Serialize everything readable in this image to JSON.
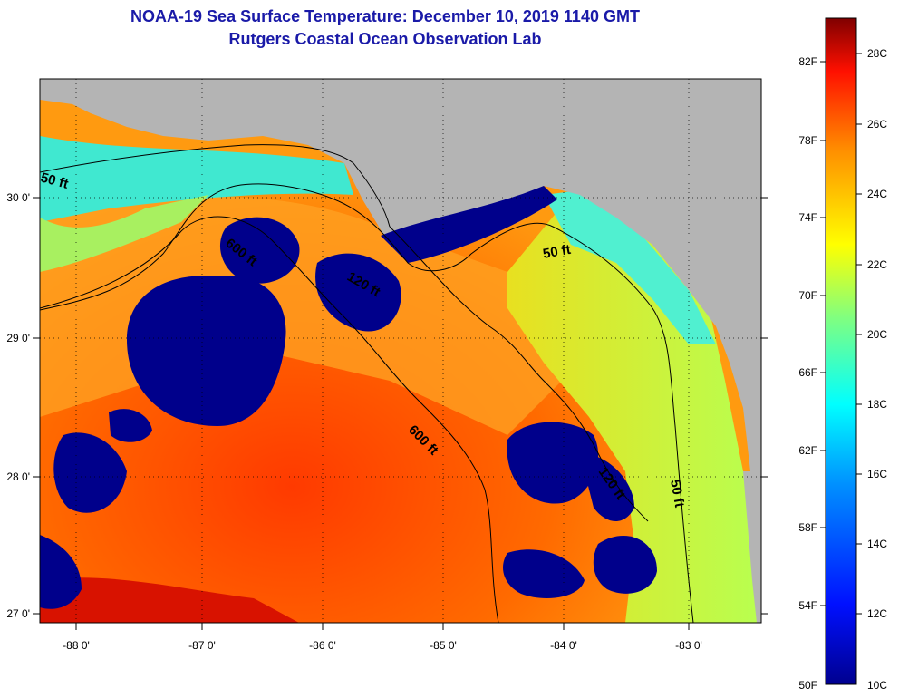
{
  "title": {
    "line1": "NOAA-19 Sea Surface Temperature:  December 10, 2019 1140 GMT",
    "line2": "Rutgers Coastal Ocean Observation Lab"
  },
  "map": {
    "lon_labels": [
      "-88 0'",
      "-87 0'",
      "-86 0'",
      "-85 0'",
      "-84 0'",
      "-83 0'"
    ],
    "lat_labels": [
      "30 0'",
      "29 0'",
      "28 0'",
      "27 0'"
    ],
    "contour_labels": [
      "50 ft",
      "600 ft",
      "120 ft",
      "50 ft",
      "600 ft",
      "120 ft",
      "50 ft"
    ],
    "land_color": "#b4b4b4",
    "cloud_color": "#00008b"
  },
  "colorbar": {
    "fahrenheit_labels": [
      "82F",
      "78F",
      "74F",
      "70F",
      "66F",
      "62F",
      "58F",
      "54F",
      "50F"
    ],
    "celsius_labels": [
      "28C",
      "26C",
      "24C",
      "22C",
      "20C",
      "18C",
      "16C",
      "14C",
      "12C",
      "10C"
    ]
  }
}
